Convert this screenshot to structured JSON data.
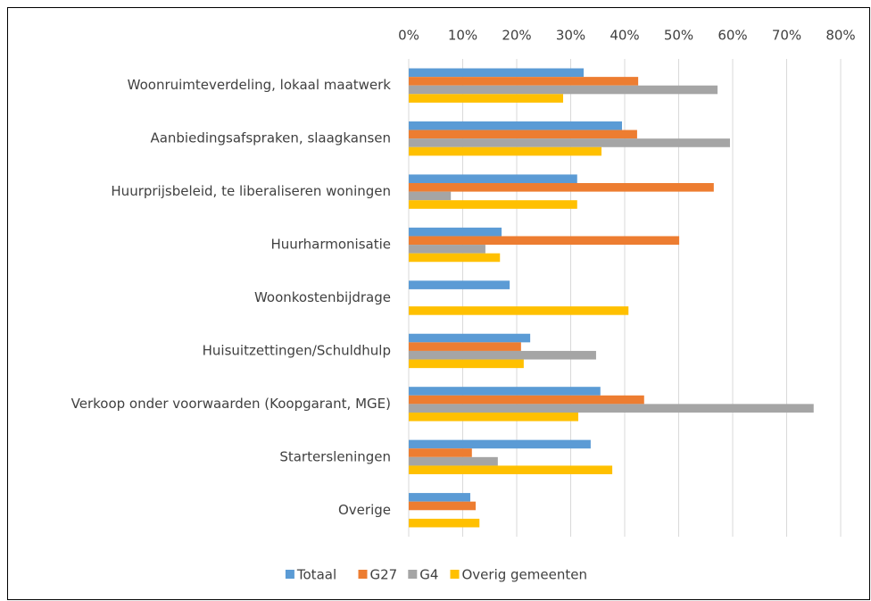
{
  "chart_data": {
    "type": "bar",
    "orientation": "horizontal",
    "categories": [
      "Woonruimteverdeling, lokaal maatwerk",
      "Aanbiedingsafspraken, slaagkansen",
      "Huurprijsbeleid, te liberaliseren woningen",
      "Huurharmonisatie",
      "Woonkostenbijdrage",
      "Huisuitzettingen/Schuldhulp",
      "Verkoop onder voorwaarden (Koopgarant, MGE)",
      "Startersleningen",
      "Overige"
    ],
    "series": [
      {
        "name": "Totaal",
        "color": "#5b9bd5",
        "values": [
          32.4,
          39.5,
          31.2,
          17.2,
          18.7,
          22.5,
          35.5,
          33.7,
          11.4
        ]
      },
      {
        "name": "G27",
        "color": "#ed7d31",
        "values": [
          42.5,
          42.3,
          56.5,
          50.1,
          null,
          20.8,
          43.6,
          11.7,
          12.4
        ]
      },
      {
        "name": "G4",
        "color": "#a5a5a5",
        "values": [
          57.2,
          59.5,
          7.8,
          14.2,
          null,
          34.7,
          75.0,
          16.5,
          null
        ]
      },
      {
        "name": "Overig gemeenten",
        "color": "#ffc000",
        "values": [
          28.6,
          35.7,
          31.2,
          16.9,
          40.7,
          21.3,
          31.4,
          37.7,
          13.1
        ]
      }
    ],
    "xlim": [
      0,
      80
    ],
    "xticks": [
      {
        "value": 0,
        "label": "0%"
      },
      {
        "value": 10,
        "label": "10%"
      },
      {
        "value": 20,
        "label": "20%"
      },
      {
        "value": 30,
        "label": "30%"
      },
      {
        "value": 40,
        "label": "40%"
      },
      {
        "value": 50,
        "label": "50%"
      },
      {
        "value": 60,
        "label": "60%"
      },
      {
        "value": 70,
        "label": "70%"
      },
      {
        "value": 80,
        "label": "80%"
      }
    ],
    "grid": true,
    "legend": "bottom"
  }
}
